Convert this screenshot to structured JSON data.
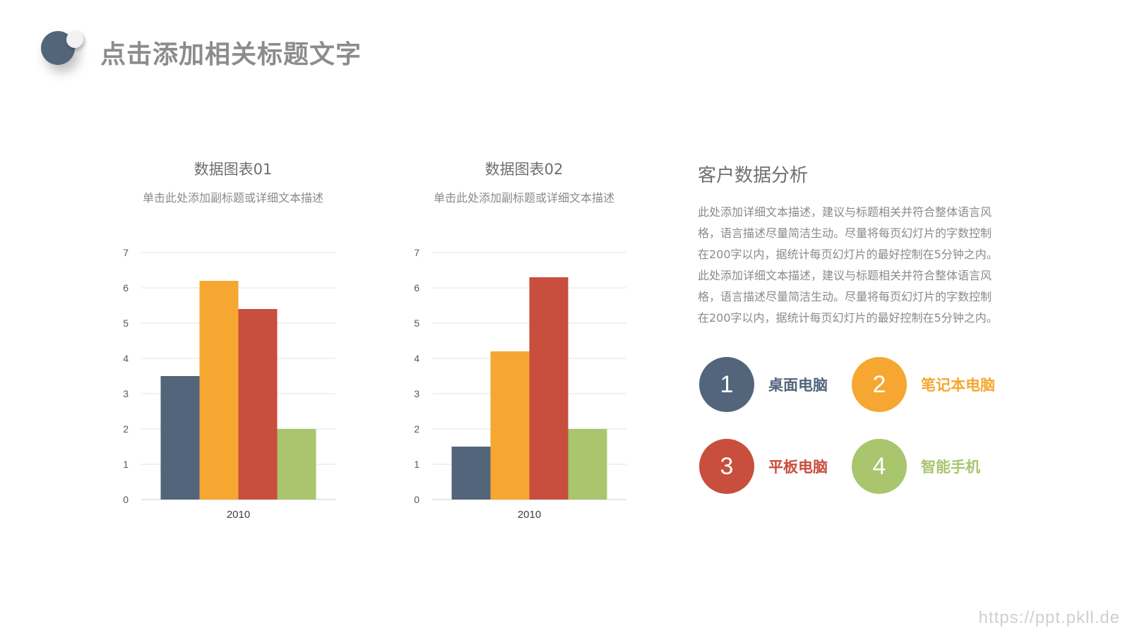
{
  "header": {
    "title": "点击添加相关标题文字"
  },
  "colors": {
    "desktop": "#52657b",
    "laptop": "#f6a731",
    "tablet": "#c84e3e",
    "phone": "#a9c56d"
  },
  "charts": [
    {
      "title": "数据图表01",
      "subtitle": "单击此处添加副标题或详细文本描述"
    },
    {
      "title": "数据图表02",
      "subtitle": "单击此处添加副标题或详细文本描述"
    }
  ],
  "chart_data": [
    {
      "type": "bar",
      "title": "数据图表01",
      "subtitle": "单击此处添加副标题或详细文本描述",
      "categories": [
        "2010"
      ],
      "ylim": [
        0,
        7
      ],
      "yticks": [
        0,
        1,
        2,
        3,
        4,
        5,
        6,
        7
      ],
      "grid": true,
      "series": [
        {
          "name": "桌面电脑",
          "color": "#52657b",
          "values": [
            3.5
          ]
        },
        {
          "name": "笔记本电脑",
          "color": "#f6a731",
          "values": [
            6.2
          ]
        },
        {
          "name": "平板电脑",
          "color": "#c84e3e",
          "values": [
            5.4
          ]
        },
        {
          "name": "智能手机",
          "color": "#a9c56d",
          "values": [
            2.0
          ]
        }
      ]
    },
    {
      "type": "bar",
      "title": "数据图表02",
      "subtitle": "单击此处添加副标题或详细文本描述",
      "categories": [
        "2010"
      ],
      "ylim": [
        0,
        7
      ],
      "yticks": [
        0,
        1,
        2,
        3,
        4,
        5,
        6,
        7
      ],
      "grid": true,
      "series": [
        {
          "name": "桌面电脑",
          "color": "#52657b",
          "values": [
            1.5
          ]
        },
        {
          "name": "笔记本电脑",
          "color": "#f6a731",
          "values": [
            4.2
          ]
        },
        {
          "name": "平板电脑",
          "color": "#c84e3e",
          "values": [
            6.3
          ]
        },
        {
          "name": "智能手机",
          "color": "#a9c56d",
          "values": [
            2.0
          ]
        }
      ]
    }
  ],
  "panel": {
    "heading": "客户数据分析",
    "lines": [
      "此处添加详细文本描述，建议与标题相关并符合整体语言风",
      "格，语言描述尽量简洁生动。尽量将每页幻灯片的字数控制",
      "在200字以内，据统计每页幻灯片的最好控制在5分钟之内。",
      "此处添加详细文本描述，建议与标题相关并符合整体语言风",
      "格，语言描述尽量简洁生动。尽量将每页幻灯片的字数控制",
      "在200字以内，据统计每页幻灯片的最好控制在5分钟之内。"
    ]
  },
  "legend": [
    {
      "number": "1",
      "label": "桌面电脑",
      "color": "#52657b"
    },
    {
      "number": "2",
      "label": "笔记本电脑",
      "color": "#f6a731"
    },
    {
      "number": "3",
      "label": "平板电脑",
      "color": "#c84e3e"
    },
    {
      "number": "4",
      "label": "智能手机",
      "color": "#a9c56d"
    }
  ],
  "watermark": "https://ppt.pkll.de"
}
